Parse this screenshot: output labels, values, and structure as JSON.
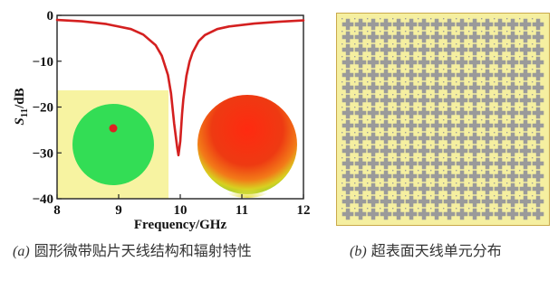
{
  "chart_data": {
    "type": "line",
    "xlabel": "Frequency/GHz",
    "ylabel_main": "S",
    "ylabel_sub": "11",
    "ylabel_unit": "/dB",
    "xlim": [
      8,
      12
    ],
    "ylim": [
      -40,
      0
    ],
    "xticks": [
      8,
      9,
      10,
      11,
      12
    ],
    "yticks": [
      0,
      -10,
      -20,
      -30,
      -40
    ],
    "xtick_labels": [
      "8",
      "9",
      "10",
      "11",
      "12"
    ],
    "ytick_labels": [
      "0",
      "−10",
      "−20",
      "−30",
      "−40"
    ],
    "grid": false,
    "series": [
      {
        "color": "#d42020",
        "x": [
          8.0,
          8.4,
          8.8,
          9.2,
          9.4,
          9.6,
          9.7,
          9.8,
          9.85,
          9.9,
          9.95,
          9.97,
          10.0,
          10.03,
          10.05,
          10.1,
          10.15,
          10.2,
          10.3,
          10.4,
          10.6,
          10.8,
          11.2,
          11.6,
          12.0
        ],
        "y": [
          -1.0,
          -1.3,
          -1.9,
          -3.0,
          -4.2,
          -6.5,
          -8.8,
          -13.0,
          -17.0,
          -23.5,
          -28.8,
          -30.5,
          -27.5,
          -21.5,
          -18.3,
          -13.2,
          -10.1,
          -8.1,
          -5.6,
          -4.3,
          -3.0,
          -2.4,
          -1.8,
          -1.4,
          -1.1
        ]
      }
    ]
  },
  "captions": {
    "a_tag": "(a)",
    "a_text": " 圆形微带贴片天线结构和辐射特性",
    "b_tag": "(b)",
    "b_text": " 超表面天线单元分布"
  },
  "colors": {
    "inset_background": "#f7f3a1",
    "patch_disc": "#33dd55",
    "feed_point": "#dd2222",
    "radiation_pattern": "#ee2a1a",
    "metasurface_cell": "#9a9a9a"
  },
  "icons": {
    "patch_antenna": "circular-patch-icon",
    "radiation_pattern": "3d-pattern-icon",
    "metasurface": "metasurface-grid-icon"
  }
}
